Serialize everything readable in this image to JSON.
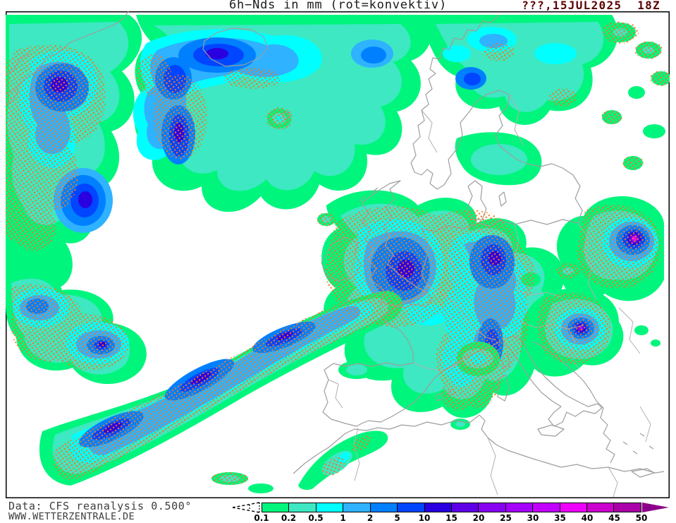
{
  "header": {
    "title": "6h−Nds in mm (rot=konvektiv)",
    "datetime": "???,15JUL2025  18Z"
  },
  "footer": {
    "line1": "Data: CFS reanalysis 0.500°",
    "line2": "WWW.WETTERZENTRALE.DE"
  },
  "legend": {
    "unit": "mm",
    "ticks": [
      "0.1",
      "0.2",
      "0.5",
      "1",
      "2",
      "5",
      "10",
      "15",
      "20",
      "25",
      "30",
      "35",
      "40",
      "45",
      "50"
    ],
    "segment_colors": [
      "#00F57D",
      "#3DE8C2",
      "#00FFFF",
      "#2FB2FF",
      "#0080FF",
      "#0045FF",
      "#2B00E0",
      "#6000E6",
      "#8800F0",
      "#A500FA",
      "#C200FF",
      "#EE00FF",
      "#CC00CC",
      "#AA00AA"
    ],
    "overflow_arrow_color": "#8B0089"
  },
  "colors": {
    "title_text": "#1A1A1A",
    "datetime_text": "#5C0000",
    "footer_text": "#3D3D3D",
    "coastline": "#9E9E9E",
    "border_lines": "#B0B0B0",
    "convective_stipple": "#F07820",
    "map_frame": "#000000"
  },
  "map": {
    "region": "Europe / North Atlantic",
    "quantity": "6h precipitation (shaded, mm); convective share stippled orange-red",
    "features": [
      {
        "area": "Greenland / Denmark Strait",
        "max_mm": "10-15",
        "convective": true
      },
      {
        "area": "Iceland / Norwegian Sea band",
        "max_mm": "10-15",
        "convective": false
      },
      {
        "area": "British Isles and Channel",
        "max_mm": "10-15",
        "convective": true
      },
      {
        "area": "Central Europe / Alps / Italy band",
        "max_mm": "10-15",
        "convective": true
      },
      {
        "area": "Mid-Atlantic SW-NE frontal band",
        "max_mm": "10-15",
        "convective": true
      },
      {
        "area": "Eastern Europe cluster",
        "max_mm": "35-40",
        "convective": true
      },
      {
        "area": "Pannonian / Balkan cluster",
        "max_mm": "25-30",
        "convective": true
      },
      {
        "area": "NW Russia / Finland",
        "max_mm": "5-10",
        "convective": true
      }
    ]
  }
}
